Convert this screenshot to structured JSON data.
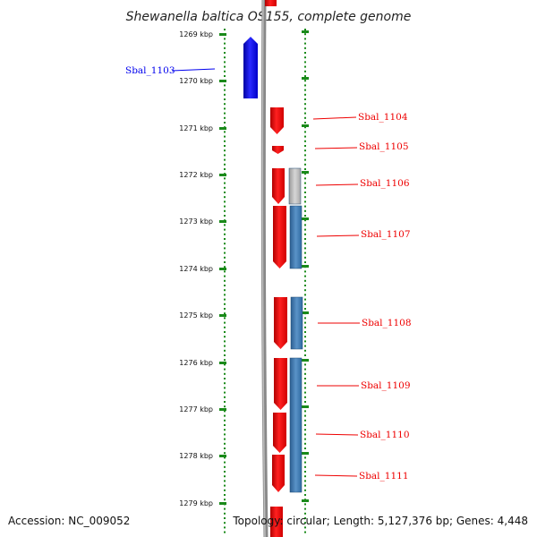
{
  "title": "Shewanella baltica OS155, complete genome",
  "accession": "Accession: NC_009052",
  "topology": "Topology: circular; Length: 5,127,376 bp; Genes: 4,448",
  "colors": {
    "forward_gene": "#0000ee",
    "reverse_gene": "#ee0000",
    "cds_blue": "#3d78b0",
    "cds_gray": "#b8b8b8",
    "ruler": "#1a8a1a",
    "backbone": "#888888"
  },
  "kbp_labels": [
    "1269 kbp",
    "1270 kbp",
    "1271 kbp",
    "1272 kbp",
    "1273 kbp",
    "1274 kbp",
    "1275 kbp",
    "1276 kbp",
    "1277 kbp",
    "1278 kbp",
    "1279 kbp"
  ],
  "genes": [
    {
      "name": "Sbal_1103",
      "strand": "+",
      "color": "blue"
    },
    {
      "name": "Sbal_1104",
      "strand": "-",
      "color": "red"
    },
    {
      "name": "Sbal_1105",
      "strand": "-",
      "color": "red"
    },
    {
      "name": "Sbal_1106",
      "strand": "-",
      "color": "red"
    },
    {
      "name": "Sbal_1107",
      "strand": "-",
      "color": "red"
    },
    {
      "name": "Sbal_1108",
      "strand": "-",
      "color": "red"
    },
    {
      "name": "Sbal_1109",
      "strand": "-",
      "color": "red"
    },
    {
      "name": "Sbal_1110",
      "strand": "-",
      "color": "red"
    },
    {
      "name": "Sbal_1111",
      "strand": "-",
      "color": "red"
    }
  ]
}
